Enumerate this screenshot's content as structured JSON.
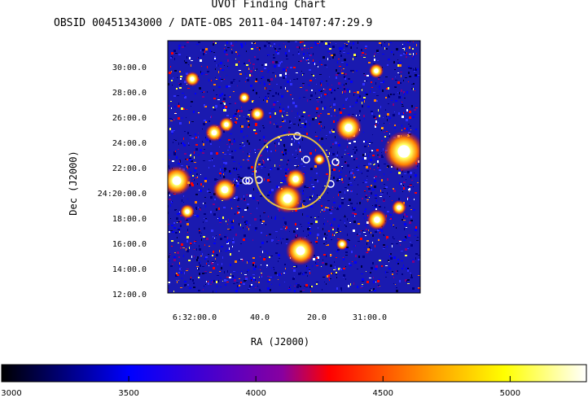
{
  "chart_data": {
    "type": "heatmap",
    "title": "UVOT Finding Chart",
    "subtitle": "OBSID 00451343000 / DATE-OBS 2011-04-14T07:47:29.9",
    "xlabel": "RA (J2000)",
    "ylabel": "Dec (J2000)",
    "x_ticks": [
      "6:32:00.0",
      "40.0",
      "20.0",
      "31:00.0"
    ],
    "y_ticks": [
      "30:00.0",
      "28:00.0",
      "26:00.0",
      "24:00.0",
      "22:00.0",
      "24:20:00.0",
      "18:00.0",
      "16:00.0",
      "14:00.0",
      "12:00.0"
    ],
    "colorbar": {
      "ticks": [
        "3000",
        "3500",
        "4000",
        "4500",
        "5000"
      ],
      "range": [
        3000,
        5300
      ],
      "colormap": "heat (black-blue-red-yellow-white)"
    }
  }
}
